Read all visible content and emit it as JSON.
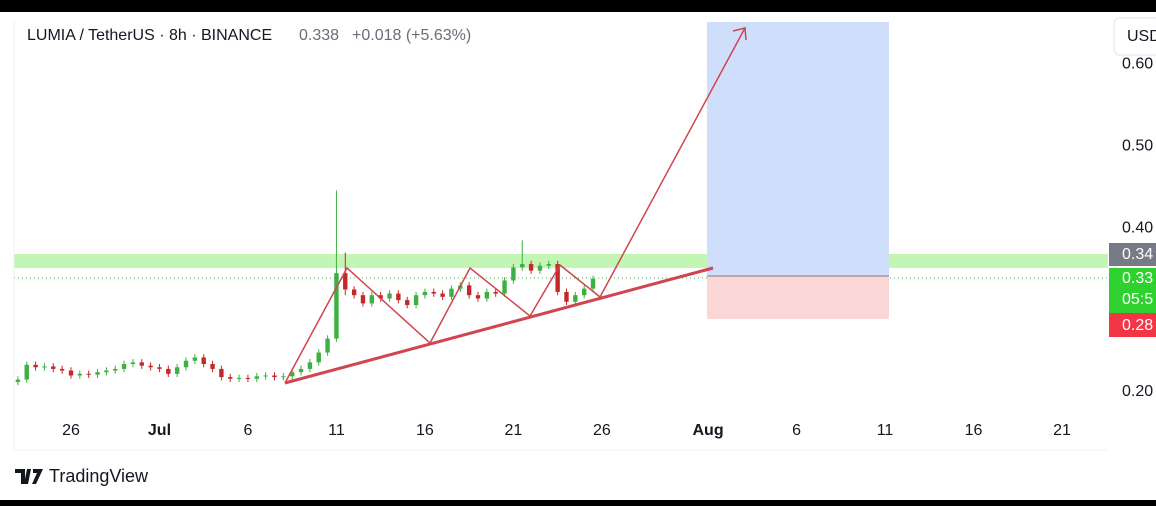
{
  "chart_data": {
    "type": "candlestick",
    "title": "LUMIA / TetherUS · 8h · BINANCE",
    "last_price": "0.338",
    "change": "+0.018 (+5.63%)",
    "currency": "USD",
    "brand": "TradingView",
    "price_labels": [
      "0.34",
      "0.33",
      "05:5",
      "0.28"
    ],
    "up_color": "#3cb043",
    "down_color": "#c62828",
    "grid": false,
    "xlim": [
      -3.22,
      58.6
    ],
    "ylim": [
      0.129,
      0.654
    ],
    "xticks": [
      {
        "value": 0,
        "label": "26"
      },
      {
        "value": 5,
        "label": "Jul"
      },
      {
        "value": 10,
        "label": "6"
      },
      {
        "value": 15,
        "label": "11"
      },
      {
        "value": 20,
        "label": "16"
      },
      {
        "value": 25,
        "label": "21"
      },
      {
        "value": 30,
        "label": "26"
      },
      {
        "value": 36,
        "label": "Aug"
      },
      {
        "value": 41,
        "label": "6"
      },
      {
        "value": 46,
        "label": "11"
      },
      {
        "value": 51,
        "label": "16"
      },
      {
        "value": 56,
        "label": "21"
      }
    ],
    "yticks": [
      {
        "value": 0.6,
        "label": "0.60"
      },
      {
        "value": 0.5,
        "label": "0.50"
      },
      {
        "value": 0.4,
        "label": "0.40"
      },
      {
        "value": 0.2,
        "label": "0.20"
      }
    ],
    "x": [
      -3,
      -2.5,
      -2,
      -1.5,
      -1,
      -0.5,
      0,
      0.5,
      1,
      1.5,
      2,
      2.5,
      3,
      3.5,
      4,
      4.5,
      5,
      5.5,
      6,
      6.5,
      7,
      7.5,
      8,
      8.5,
      9,
      9.5,
      10,
      10.5,
      11,
      11.5,
      12,
      12.5,
      13,
      13.5,
      14,
      14.5,
      15,
      15.5,
      16,
      16.5,
      17,
      17.5,
      18,
      18.5,
      19,
      19.5,
      20,
      20.5,
      21,
      21.5,
      22,
      22.5,
      23,
      23.5,
      24,
      24.5,
      25,
      25.5,
      26,
      26.5,
      27,
      27.5,
      28,
      28.5,
      29,
      29.5
    ],
    "open": [
      0.212,
      0.215,
      0.233,
      0.23,
      0.231,
      0.228,
      0.226,
      0.22,
      0.222,
      0.221,
      0.224,
      0.226,
      0.228,
      0.234,
      0.236,
      0.232,
      0.23,
      0.228,
      0.222,
      0.23,
      0.238,
      0.242,
      0.234,
      0.228,
      0.218,
      0.216,
      0.217,
      0.216,
      0.219,
      0.22,
      0.218,
      0.219,
      0.224,
      0.228,
      0.236,
      0.248,
      0.265,
      0.345,
      0.325,
      0.318,
      0.308,
      0.318,
      0.314,
      0.32,
      0.312,
      0.306,
      0.318,
      0.322,
      0.32,
      0.316,
      0.326,
      0.33,
      0.318,
      0.314,
      0.322,
      0.32,
      0.336,
      0.352,
      0.356,
      0.348,
      0.354,
      0.356,
      0.322,
      0.31,
      0.318,
      0.326
    ],
    "high": [
      0.219,
      0.237,
      0.237,
      0.235,
      0.235,
      0.232,
      0.23,
      0.226,
      0.226,
      0.228,
      0.23,
      0.232,
      0.238,
      0.24,
      0.24,
      0.236,
      0.234,
      0.232,
      0.234,
      0.242,
      0.246,
      0.246,
      0.238,
      0.232,
      0.222,
      0.221,
      0.221,
      0.223,
      0.224,
      0.224,
      0.223,
      0.228,
      0.232,
      0.24,
      0.252,
      0.269,
      0.446,
      0.37,
      0.329,
      0.322,
      0.322,
      0.322,
      0.324,
      0.324,
      0.316,
      0.322,
      0.326,
      0.326,
      0.324,
      0.33,
      0.334,
      0.334,
      0.322,
      0.326,
      0.326,
      0.34,
      0.356,
      0.385,
      0.36,
      0.358,
      0.36,
      0.36,
      0.326,
      0.322,
      0.33,
      0.342
    ],
    "low": [
      0.208,
      0.211,
      0.226,
      0.226,
      0.224,
      0.222,
      0.216,
      0.216,
      0.217,
      0.217,
      0.22,
      0.222,
      0.224,
      0.23,
      0.228,
      0.226,
      0.224,
      0.218,
      0.218,
      0.226,
      0.234,
      0.23,
      0.224,
      0.214,
      0.212,
      0.212,
      0.212,
      0.212,
      0.215,
      0.214,
      0.214,
      0.215,
      0.22,
      0.224,
      0.232,
      0.244,
      0.261,
      0.318,
      0.314,
      0.304,
      0.304,
      0.31,
      0.31,
      0.308,
      0.302,
      0.302,
      0.314,
      0.316,
      0.312,
      0.312,
      0.322,
      0.314,
      0.31,
      0.31,
      0.316,
      0.316,
      0.332,
      0.348,
      0.344,
      0.344,
      0.35,
      0.318,
      0.306,
      0.306,
      0.314,
      0.322
    ],
    "close": [
      0.215,
      0.233,
      0.23,
      0.231,
      0.228,
      0.226,
      0.22,
      0.222,
      0.221,
      0.224,
      0.226,
      0.228,
      0.234,
      0.236,
      0.232,
      0.23,
      0.228,
      0.222,
      0.23,
      0.238,
      0.242,
      0.234,
      0.228,
      0.218,
      0.216,
      0.217,
      0.216,
      0.219,
      0.22,
      0.218,
      0.219,
      0.224,
      0.228,
      0.236,
      0.248,
      0.265,
      0.345,
      0.325,
      0.318,
      0.308,
      0.318,
      0.314,
      0.32,
      0.312,
      0.306,
      0.318,
      0.322,
      0.32,
      0.316,
      0.326,
      0.33,
      0.318,
      0.314,
      0.322,
      0.32,
      0.336,
      0.352,
      0.356,
      0.348,
      0.354,
      0.356,
      0.322,
      0.31,
      0.318,
      0.326,
      0.338
    ]
  }
}
